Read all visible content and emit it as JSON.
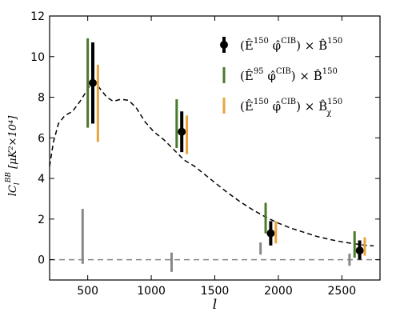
{
  "chart_data": {
    "type": "scatter",
    "xlabel": "l",
    "ylabel": "lC_l^{BB} [μK²×10⁴]",
    "ylabel_parts": {
      "main": "lC",
      "sub": "l",
      "sup": "BB",
      "units": "[μK²×10⁴]"
    },
    "xlim": [
      200,
      2800
    ],
    "ylim": [
      -1,
      12
    ],
    "xticks": [
      500,
      1000,
      1500,
      2000,
      2500
    ],
    "yticks": [
      0,
      2,
      4,
      6,
      8,
      10,
      12
    ],
    "legend_position": "top-right",
    "series": [
      {
        "name": "(Ê¹⁵⁰ φ̂ᶜᴵᴮ) × B̂¹⁵⁰",
        "legend": {
          "pre": "(Ê",
          "sup1": "150",
          "mid": " φ̂",
          "sup2": "CIB",
          "post": ") × B̂",
          "sup3": "150",
          "sub3": ""
        },
        "color": "#000000",
        "marker": "circle",
        "x": [
          540,
          1240,
          1940,
          2640
        ],
        "y": [
          8.7,
          6.3,
          1.3,
          0.45
        ],
        "err_low": [
          6.7,
          5.3,
          0.7,
          0.0
        ],
        "err_high": [
          10.7,
          7.3,
          1.9,
          0.95
        ]
      },
      {
        "name": "(Ê⁹⁵ φ̂ᶜᴵᴮ) × B̂¹⁵⁰",
        "legend": {
          "pre": "(Ê",
          "sup1": "95",
          "mid": " φ̂",
          "sup2": "CIB",
          "post": ") × B̂",
          "sup3": "150",
          "sub3": ""
        },
        "color": "#4a7a2a",
        "marker": "none",
        "x": [
          500,
          1200,
          1900,
          2600
        ],
        "y": [
          8.7,
          6.7,
          2.05,
          0.7
        ],
        "err_low": [
          6.5,
          5.5,
          1.3,
          0.1
        ],
        "err_high": [
          10.9,
          7.9,
          2.8,
          1.4
        ]
      },
      {
        "name": "(Ê¹⁵⁰ φ̂ᶜᴵᴮ) × B̂¹⁵⁰ᵧ",
        "legend": {
          "pre": "(Ê",
          "sup1": "150",
          "mid": " φ̂",
          "sup2": "CIB",
          "post": ") × B̂",
          "sup3": "150",
          "sub3": "χ"
        },
        "color": "#e8a33c",
        "marker": "none",
        "x": [
          580,
          1280,
          1980,
          2680
        ],
        "y": [
          7.7,
          6.2,
          1.3,
          0.65
        ],
        "err_low": [
          5.8,
          5.2,
          0.8,
          0.2
        ],
        "err_high": [
          9.6,
          7.1,
          1.9,
          1.1
        ]
      },
      {
        "name": "null",
        "color": "#888888",
        "marker": "none",
        "x": [
          460,
          1160,
          1860,
          2560
        ],
        "y": [
          1.1,
          -0.1,
          0.55,
          0.0
        ],
        "err_low": [
          -0.2,
          -0.6,
          0.25,
          -0.3
        ],
        "err_high": [
          2.5,
          0.35,
          0.85,
          0.3
        ]
      }
    ],
    "theory_curve": {
      "style": "dashed",
      "color": "#000000",
      "x": [
        200,
        230,
        270,
        320,
        380,
        440,
        480,
        520,
        560,
        600,
        650,
        700,
        760,
        820,
        880,
        950,
        1020,
        1100,
        1180,
        1260,
        1340,
        1420,
        1500,
        1600,
        1700,
        1800,
        1900,
        2000,
        2100,
        2200,
        2300,
        2400,
        2500,
        2600,
        2700,
        2750
      ],
      "y": [
        4.6,
        5.8,
        6.7,
        7.1,
        7.3,
        7.8,
        8.2,
        8.6,
        8.7,
        8.4,
        8.0,
        7.8,
        7.9,
        7.85,
        7.5,
        6.8,
        6.3,
        5.9,
        5.4,
        4.9,
        4.6,
        4.2,
        3.8,
        3.3,
        2.85,
        2.45,
        2.1,
        1.8,
        1.55,
        1.35,
        1.15,
        1.0,
        0.88,
        0.78,
        0.7,
        0.68
      ]
    },
    "zero_line": {
      "y": 0,
      "style": "dashed",
      "color": "#888888"
    }
  }
}
